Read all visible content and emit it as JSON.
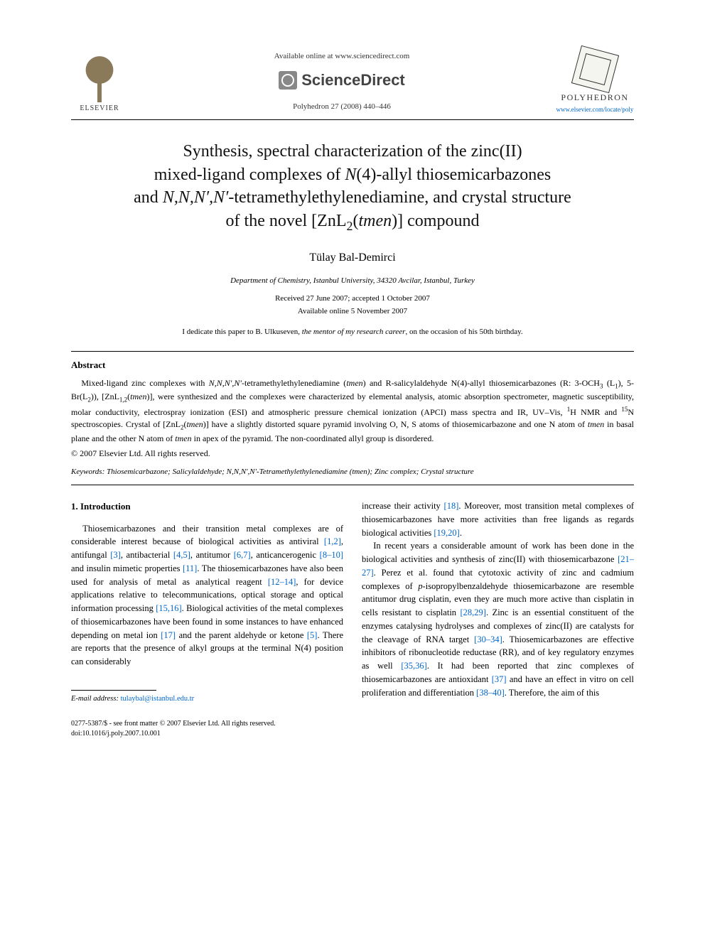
{
  "header": {
    "elsevier_label": "ELSEVIER",
    "available_online": "Available online at www.sciencedirect.com",
    "sciencedirect_label": "ScienceDirect",
    "journal_reference": "Polyhedron 27 (2008) 440–446",
    "polyhedron_label": "POLYHEDRON",
    "journal_url": "www.elsevier.com/locate/poly"
  },
  "title_parts": {
    "line1": "Synthesis, spectral characterization of the zinc(II)",
    "line2_prefix": "mixed-ligand complexes of ",
    "line2_ital": "N",
    "line2_mid": "(4)-allyl thiosemicarbazones",
    "line3_prefix": "and ",
    "line3_ital": "N,N,N′,N′",
    "line3_rest": "-tetramethylethylenediamine, and crystal structure",
    "line4_prefix": "of the novel [ZnL",
    "line4_sub": "2",
    "line4_mid": "(",
    "line4_ital": "tmen",
    "line4_end": ")] compound"
  },
  "author": "Tülay Bal-Demirci",
  "affiliation": "Department of Chemistry, Istanbul University, 34320 Avcilar, Istanbul, Turkey",
  "dates": {
    "received": "Received 27 June 2007; accepted 1 October 2007",
    "online": "Available online 5 November 2007"
  },
  "dedication": {
    "prefix": "I dedicate this paper to B. Ulkuseven, ",
    "ital": "the mentor of my research career",
    "suffix": ", on the occasion of his 50th birthday."
  },
  "abstract": {
    "heading": "Abstract",
    "body_parts": [
      "Mixed-ligand zinc complexes with ",
      "N,N,N′,N′",
      "-tetramethylethylenediamine (",
      "tmen",
      ") and R-salicylaldehyde N(4)-allyl thiosemicarbazones (R: 3-OCH",
      "3",
      " (L",
      "1",
      "), 5-Br(L",
      "2",
      ")), [ZnL",
      "1,2",
      "(",
      "tmen",
      ")], were synthesized and the complexes were characterized by elemental analysis, atomic absorption spectrometer, magnetic susceptibility, molar conductivity, electrospray ionization (ESI) and atmospheric pressure chemical ionization (APCI) mass spectra and IR, UV–Vis, ",
      "1",
      "H NMR and ",
      "15",
      "N spectroscopies. Crystal of [ZnL",
      "2",
      "(",
      "tmen",
      ")] have a slightly distorted square pyramid involving O, N, S atoms of thiosemicarbazone and one N atom of ",
      "tmen",
      " in basal plane and the other N atom of ",
      "tmen",
      " in apex of the pyramid. The non-coordinated allyl group is disordered."
    ],
    "copyright": "© 2007 Elsevier Ltd. All rights reserved."
  },
  "keywords": {
    "label": "Keywords:",
    "text": " Thiosemicarbazone; Salicylaldehyde; N,N,N′,N′-Tetramethylethylenediamine (tmen); Zinc complex; Crystal structure"
  },
  "introduction": {
    "heading": "1. Introduction",
    "col1_text_parts": [
      "Thiosemicarbazones and their transition metal complexes are of considerable interest because of biological activities as antiviral ",
      "[1,2]",
      ", antifungal ",
      "[3]",
      ", antibacterial ",
      "[4,5]",
      ", antitumor ",
      "[6,7]",
      ", anticancerogenic ",
      "[8–10]",
      " and insulin mimetic properties ",
      "[11]",
      ". The thiosemicarbazones have also been used for analysis of metal as analytical reagent ",
      "[12–14]",
      ", for device applications relative to telecommunications, optical storage and optical information processing ",
      "[15,16]",
      ". Biological activities of the metal complexes of thiosemicarbazones have been found in some instances to have enhanced depending on metal ion ",
      "[17]",
      " and the parent aldehyde or ketone ",
      "[5]",
      ". There are reports that the presence of alkyl groups at the terminal N(4) position can considerably"
    ],
    "col2_text_parts": [
      "increase their activity ",
      "[18]",
      ". Moreover, most transition metal complexes of thiosemicarbazones have more activities than free ligands as regards biological activities ",
      "[19,20]",
      "."
    ],
    "col2_p2_parts": [
      "In recent years a considerable amount of work has been done in the biological activities and synthesis of zinc(II) with thiosemicarbazone ",
      "[21–27]",
      ". Perez et al. found that cytotoxic activity of zinc and cadmium complexes of ",
      "p",
      "-isopropylbenzaldehyde thiosemicarbazone are resemble antitumor drug cisplatin, even they are much more active than cisplatin in cells resistant to cisplatin ",
      "[28,29]",
      ". Zinc is an essential constituent of the enzymes catalysing hydrolyses and complexes of zinc(II) are catalysts for the cleavage of RNA target ",
      "[30–34]",
      ". Thiosemicarbazones are effective inhibitors of ribonucleotide reductase (RR), and of key regulatory enzymes as well ",
      "[35,36]",
      ". It had been reported that zinc complexes of thiosemicarbazones are antioxidant ",
      "[37]",
      " and have an effect in vitro on cell proliferation and differentiation ",
      "[38–40]",
      ". Therefore, the aim of this"
    ]
  },
  "footnote": {
    "email_label": "E-mail address:",
    "email": "tulaybal@istanbul.edu.tr"
  },
  "bottom": {
    "line1": "0277-5387/$ - see front matter © 2007 Elsevier Ltd. All rights reserved.",
    "line2": "doi:10.1016/j.poly.2007.10.001"
  },
  "colors": {
    "link": "#0066cc",
    "text": "#000000",
    "background": "#ffffff",
    "logo_gray": "#888888"
  }
}
